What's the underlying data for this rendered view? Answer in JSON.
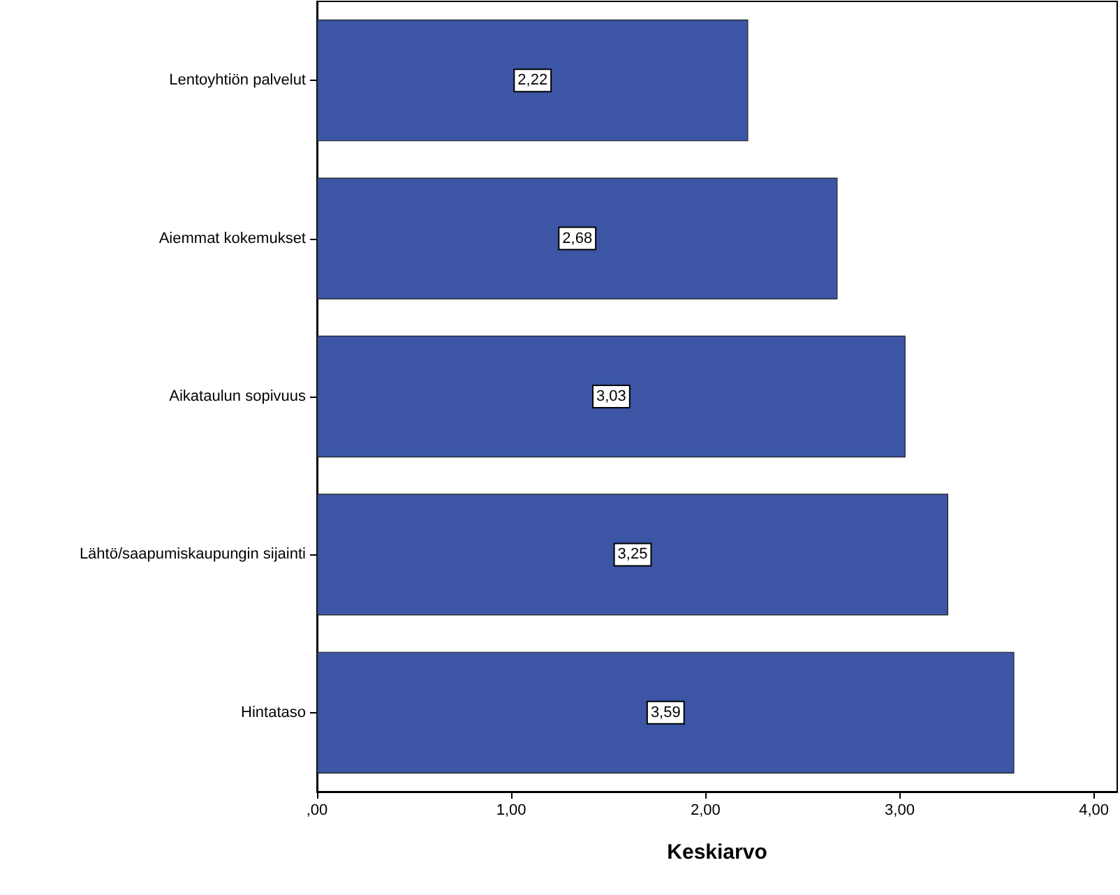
{
  "chart_data": {
    "type": "bar",
    "orientation": "horizontal",
    "xlabel": "Keskiarvo",
    "categories": [
      "Lentoyhtiön palvelut",
      "Aiemmat kokemukset",
      "Aikataulun sopivuus",
      "Lähtö/saapumiskaupungin sijainti",
      "Hintataso"
    ],
    "values": [
      2.22,
      2.68,
      3.03,
      3.25,
      3.59
    ],
    "value_labels": [
      "2,22",
      "2,68",
      "3,03",
      "3,25",
      "3,59"
    ],
    "color": "#3c55a5",
    "xlim": [
      0,
      4.12
    ],
    "xticks": [
      {
        "value": 0,
        "label": ",00"
      },
      {
        "value": 1,
        "label": "1,00"
      },
      {
        "value": 2,
        "label": "2,00"
      },
      {
        "value": 3,
        "label": "3,00"
      },
      {
        "value": 4,
        "label": "4,00"
      }
    ]
  }
}
